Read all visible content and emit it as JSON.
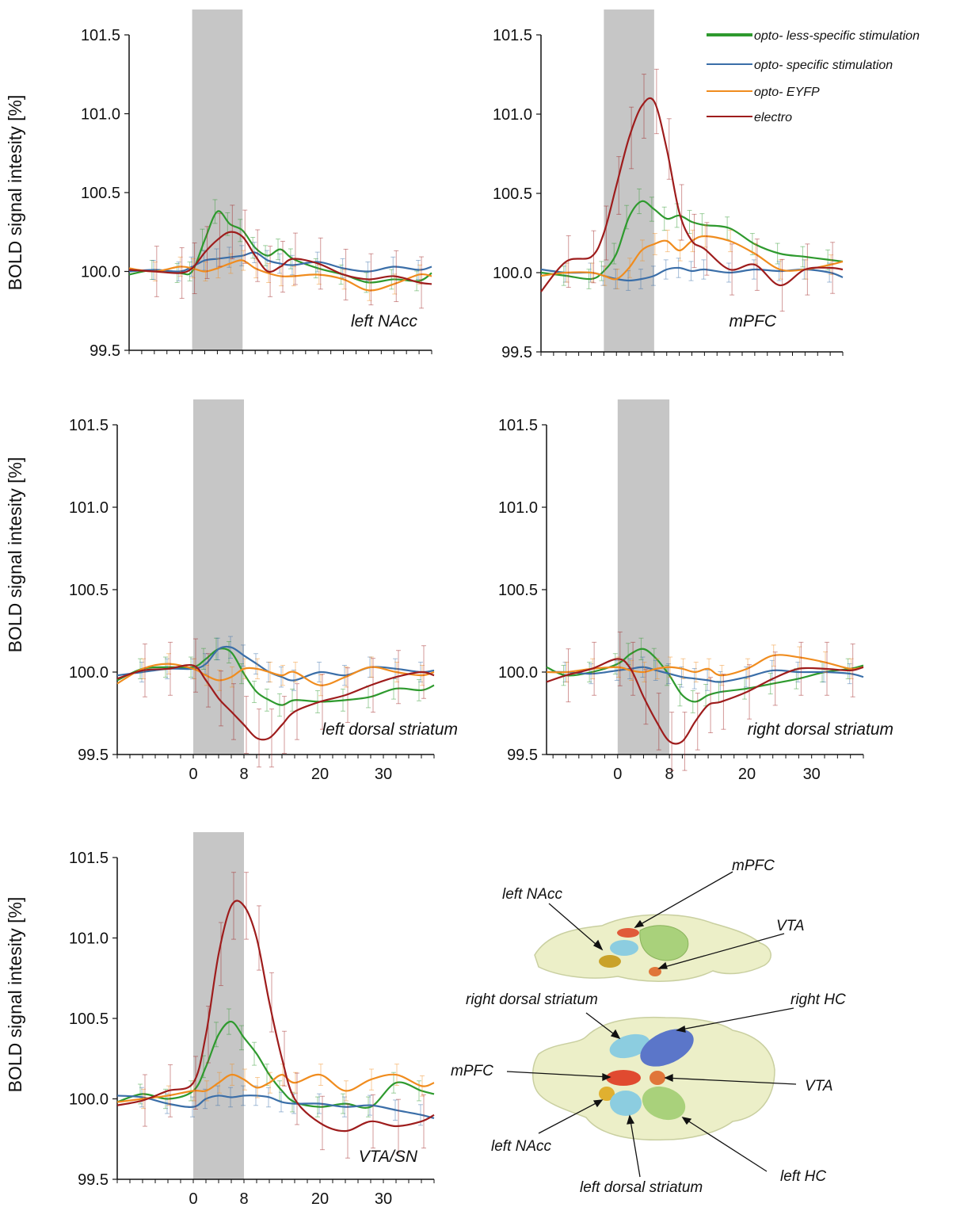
{
  "colors": {
    "opto_less_specific": "#2e9a2e",
    "opto_specific": "#3a6ea8",
    "opto_eyfp": "#f08c1e",
    "electro": "#9e1c1c",
    "stim_band": "#c6c6c6"
  },
  "legend": [
    {
      "key": "opto_less_specific",
      "label": "opto- less-specific stimulation"
    },
    {
      "key": "opto_specific",
      "label": "opto- specific stimulation"
    },
    {
      "key": "opto_eyfp",
      "label": "opto- EYFP"
    },
    {
      "key": "electro",
      "label": "electro"
    }
  ],
  "chart_data": [
    {
      "type": "line",
      "region": "left NAcc",
      "ylabel": "BOLD signal intesity [%]",
      "ylim": [
        99.5,
        101.5
      ],
      "yticks": [
        99.5,
        100.0,
        100.5,
        101.0,
        101.5
      ],
      "xlim": [
        -10,
        38
      ],
      "xticks": [],
      "stimulation": [
        0,
        8
      ],
      "series": [
        {
          "key": "opto_less_specific",
          "x": [
            -10,
            -6,
            -2,
            0,
            2,
            4,
            6,
            8,
            10,
            12,
            14,
            16,
            20,
            24,
            28,
            32,
            36,
            38
          ],
          "y": [
            99.98,
            100.01,
            99.99,
            100.0,
            100.2,
            100.38,
            100.3,
            100.26,
            100.15,
            100.1,
            100.14,
            100.08,
            100.02,
            99.98,
            99.93,
            99.95,
            99.94,
            99.99
          ]
        },
        {
          "key": "opto_specific",
          "x": [
            -10,
            -6,
            -2,
            0,
            2,
            4,
            6,
            8,
            10,
            12,
            14,
            16,
            20,
            24,
            28,
            32,
            36,
            38
          ],
          "y": [
            100.0,
            100.01,
            100.0,
            100.03,
            100.07,
            100.08,
            100.09,
            100.1,
            100.12,
            100.07,
            100.05,
            100.04,
            100.06,
            100.02,
            100.0,
            100.03,
            100.01,
            100.03
          ]
        },
        {
          "key": "opto_eyfp",
          "x": [
            -10,
            -6,
            -2,
            0,
            2,
            4,
            6,
            8,
            10,
            12,
            14,
            16,
            20,
            24,
            28,
            32,
            36,
            38
          ],
          "y": [
            100.02,
            100.0,
            100.03,
            100.02,
            100.0,
            100.02,
            100.05,
            100.07,
            100.02,
            99.99,
            99.97,
            99.97,
            99.98,
            99.95,
            99.88,
            99.92,
            99.98,
            99.97
          ]
        },
        {
          "key": "electro",
          "x": [
            -10,
            -6,
            -2,
            0,
            2,
            4,
            6,
            8,
            10,
            12,
            14,
            16,
            20,
            24,
            28,
            32,
            36,
            38
          ],
          "y": [
            100.01,
            100.0,
            99.99,
            100.02,
            100.12,
            100.2,
            100.25,
            100.22,
            100.1,
            100.0,
            100.03,
            100.08,
            100.05,
            99.98,
            99.95,
            99.97,
            99.93,
            99.92
          ]
        }
      ]
    },
    {
      "type": "line",
      "region": "mPFC",
      "ylabel": "",
      "ylim": [
        99.5,
        101.5
      ],
      "yticks": [
        99.5,
        100.0,
        100.5,
        101.0,
        101.5
      ],
      "xlim": [
        -10,
        38
      ],
      "xticks": [],
      "stimulation": [
        0,
        8
      ],
      "series": [
        {
          "key": "opto_less_specific",
          "x": [
            -10,
            -6,
            -2,
            0,
            2,
            4,
            6,
            8,
            10,
            12,
            14,
            16,
            20,
            24,
            28,
            32,
            36,
            38
          ],
          "y": [
            100.0,
            99.98,
            99.96,
            100.01,
            100.12,
            100.35,
            100.45,
            100.4,
            100.34,
            100.36,
            100.32,
            100.3,
            100.28,
            100.18,
            100.12,
            100.1,
            100.08,
            100.07
          ]
        },
        {
          "key": "opto_specific",
          "x": [
            -10,
            -6,
            -2,
            0,
            2,
            4,
            6,
            8,
            10,
            12,
            14,
            16,
            20,
            24,
            28,
            32,
            36,
            38
          ],
          "y": [
            100.02,
            100.0,
            100.0,
            99.98,
            99.96,
            99.95,
            99.96,
            99.98,
            100.02,
            100.03,
            100.01,
            100.02,
            100.0,
            100.02,
            100.01,
            100.02,
            100.0,
            99.97
          ]
        },
        {
          "key": "opto_eyfp",
          "x": [
            -10,
            -6,
            -2,
            0,
            2,
            4,
            6,
            8,
            10,
            12,
            14,
            16,
            20,
            24,
            28,
            32,
            36,
            38
          ],
          "y": [
            99.98,
            100.0,
            100.0,
            99.98,
            99.96,
            100.03,
            100.14,
            100.18,
            100.2,
            100.14,
            100.2,
            100.23,
            100.2,
            100.12,
            100.02,
            100.02,
            100.05,
            100.07
          ]
        },
        {
          "key": "electro",
          "x": [
            -10,
            -6,
            -2,
            0,
            2,
            4,
            6,
            8,
            10,
            12,
            14,
            16,
            20,
            24,
            28,
            32,
            36,
            38
          ],
          "y": [
            99.88,
            100.07,
            100.1,
            100.25,
            100.55,
            100.85,
            101.05,
            101.08,
            100.78,
            100.38,
            100.2,
            100.15,
            100.02,
            100.05,
            99.92,
            100.02,
            100.03,
            100.02
          ]
        }
      ]
    },
    {
      "type": "line",
      "region": "left dorsal striatum",
      "ylabel": "BOLD signal intesity [%]",
      "ylim": [
        99.5,
        101.5
      ],
      "yticks": [
        99.5,
        100.0,
        100.5,
        101.0,
        101.5
      ],
      "xlim": [
        -12,
        38
      ],
      "xticks": [
        0,
        8,
        20,
        30
      ],
      "stimulation": [
        0,
        8
      ],
      "series": [
        {
          "key": "opto_less_specific",
          "x": [
            -12,
            -8,
            -4,
            0,
            2,
            4,
            6,
            8,
            10,
            12,
            14,
            16,
            20,
            24,
            28,
            32,
            36,
            38
          ],
          "y": [
            99.95,
            100.02,
            100.03,
            100.03,
            100.08,
            100.14,
            100.12,
            99.99,
            99.88,
            99.83,
            99.8,
            99.83,
            99.82,
            99.83,
            99.85,
            99.9,
            99.89,
            99.92
          ]
        },
        {
          "key": "opto_specific",
          "x": [
            -12,
            -8,
            -4,
            0,
            2,
            4,
            6,
            8,
            10,
            12,
            14,
            16,
            20,
            24,
            28,
            32,
            36,
            38
          ],
          "y": [
            99.98,
            100.0,
            100.02,
            100.02,
            100.05,
            100.14,
            100.15,
            100.1,
            100.05,
            100.0,
            99.97,
            99.95,
            100.0,
            99.98,
            100.03,
            100.02,
            100.0,
            100.01
          ]
        },
        {
          "key": "opto_eyfp",
          "x": [
            -12,
            -8,
            -4,
            0,
            2,
            4,
            6,
            8,
            10,
            12,
            14,
            16,
            20,
            24,
            28,
            32,
            36,
            38
          ],
          "y": [
            99.93,
            100.02,
            100.05,
            100.02,
            99.98,
            99.95,
            99.97,
            100.02,
            100.02,
            100.0,
            99.98,
            100.0,
            99.92,
            99.97,
            100.03,
            100.0,
            99.98,
            100.0
          ]
        },
        {
          "key": "electro",
          "x": [
            -12,
            -8,
            -4,
            0,
            2,
            4,
            6,
            8,
            10,
            12,
            14,
            16,
            20,
            24,
            28,
            32,
            36,
            38
          ],
          "y": [
            99.96,
            100.01,
            100.02,
            100.04,
            99.95,
            99.84,
            99.76,
            99.68,
            99.6,
            99.6,
            99.68,
            99.76,
            99.82,
            99.86,
            99.92,
            99.97,
            100.0,
            99.98
          ]
        }
      ]
    },
    {
      "type": "line",
      "region": "right dorsal striatum",
      "ylabel": "",
      "ylim": [
        99.5,
        101.5
      ],
      "yticks": [
        99.5,
        100.0,
        100.5,
        101.0,
        101.5
      ],
      "xlim": [
        -11,
        38
      ],
      "xticks": [
        0,
        8,
        20,
        30
      ],
      "stimulation": [
        0,
        8
      ],
      "series": [
        {
          "key": "opto_less_specific",
          "x": [
            -11,
            -8,
            -4,
            0,
            2,
            4,
            6,
            8,
            10,
            12,
            14,
            16,
            20,
            24,
            28,
            32,
            36,
            38
          ],
          "y": [
            100.03,
            99.98,
            100.0,
            100.05,
            100.11,
            100.14,
            100.08,
            99.98,
            99.86,
            99.82,
            99.86,
            99.88,
            99.9,
            99.93,
            99.96,
            100.0,
            100.02,
            100.04
          ]
        },
        {
          "key": "opto_specific",
          "x": [
            -11,
            -8,
            -4,
            0,
            2,
            4,
            6,
            8,
            10,
            12,
            14,
            16,
            20,
            24,
            28,
            32,
            36,
            38
          ],
          "y": [
            100.0,
            100.0,
            99.99,
            100.01,
            100.02,
            100.03,
            100.01,
            99.99,
            99.97,
            99.96,
            99.95,
            99.94,
            99.97,
            100.01,
            100.0,
            100.0,
            99.99,
            99.97
          ]
        },
        {
          "key": "opto_eyfp",
          "x": [
            -11,
            -8,
            -4,
            0,
            2,
            4,
            6,
            8,
            10,
            12,
            14,
            16,
            20,
            24,
            28,
            32,
            36,
            38
          ],
          "y": [
            100.0,
            100.0,
            100.02,
            100.03,
            100.01,
            100.0,
            100.02,
            100.03,
            100.02,
            100.0,
            100.02,
            99.98,
            100.02,
            100.1,
            100.09,
            100.06,
            100.02,
            100.03
          ]
        },
        {
          "key": "electro",
          "x": [
            -11,
            -8,
            -4,
            0,
            2,
            4,
            6,
            8,
            10,
            12,
            14,
            16,
            20,
            24,
            28,
            32,
            36,
            38
          ],
          "y": [
            99.94,
            99.98,
            100.02,
            100.08,
            100.02,
            99.85,
            99.7,
            99.58,
            99.58,
            99.7,
            99.8,
            99.82,
            99.88,
            99.96,
            100.02,
            100.02,
            100.01,
            100.03
          ]
        }
      ]
    },
    {
      "type": "line",
      "region": "VTA/SN",
      "ylabel": "BOLD signal intesity [%]",
      "ylim": [
        99.5,
        101.5
      ],
      "yticks": [
        99.5,
        100.0,
        100.5,
        101.0,
        101.5
      ],
      "xlim": [
        -12,
        38
      ],
      "xticks": [
        0,
        8,
        20,
        30
      ],
      "stimulation": [
        0,
        8
      ],
      "series": [
        {
          "key": "opto_less_specific",
          "x": [
            -12,
            -8,
            -4,
            0,
            2,
            4,
            6,
            8,
            10,
            12,
            14,
            16,
            20,
            24,
            28,
            32,
            36,
            38
          ],
          "y": [
            99.98,
            100.03,
            100.0,
            100.05,
            100.2,
            100.4,
            100.48,
            100.38,
            100.28,
            100.15,
            100.05,
            99.98,
            99.95,
            99.97,
            99.95,
            100.1,
            100.05,
            100.03
          ]
        },
        {
          "key": "opto_specific",
          "x": [
            -12,
            -8,
            -4,
            0,
            2,
            4,
            6,
            8,
            10,
            12,
            14,
            16,
            20,
            24,
            28,
            32,
            36,
            38
          ],
          "y": [
            100.02,
            100.01,
            99.97,
            99.95,
            100.0,
            100.02,
            100.01,
            100.02,
            100.02,
            100.01,
            99.98,
            99.97,
            99.97,
            99.95,
            99.96,
            99.93,
            99.9,
            99.88
          ]
        },
        {
          "key": "opto_eyfp",
          "x": [
            -12,
            -8,
            -4,
            0,
            2,
            4,
            6,
            8,
            10,
            12,
            14,
            16,
            20,
            24,
            28,
            32,
            36,
            38
          ],
          "y": [
            99.98,
            100.0,
            100.02,
            100.05,
            100.05,
            100.1,
            100.15,
            100.12,
            100.07,
            100.1,
            100.15,
            100.1,
            100.15,
            100.05,
            100.12,
            100.15,
            100.08,
            100.1
          ]
        },
        {
          "key": "electro",
          "x": [
            -12,
            -8,
            -4,
            0,
            2,
            4,
            6,
            8,
            10,
            12,
            14,
            16,
            20,
            24,
            28,
            32,
            36,
            38
          ],
          "y": [
            99.96,
            99.99,
            100.05,
            100.1,
            100.4,
            100.9,
            101.2,
            101.2,
            101.0,
            100.6,
            100.25,
            100.0,
            99.85,
            99.8,
            99.86,
            99.83,
            99.86,
            99.9
          ]
        }
      ]
    }
  ],
  "anatomy": {
    "labels_top": [
      "left NAcc",
      "mPFC",
      "VTA"
    ],
    "labels_bottom": [
      "right dorsal striatum",
      "right HC",
      "mPFC",
      "VTA",
      "left NAcc",
      "left dorsal striatum",
      "left HC"
    ]
  }
}
